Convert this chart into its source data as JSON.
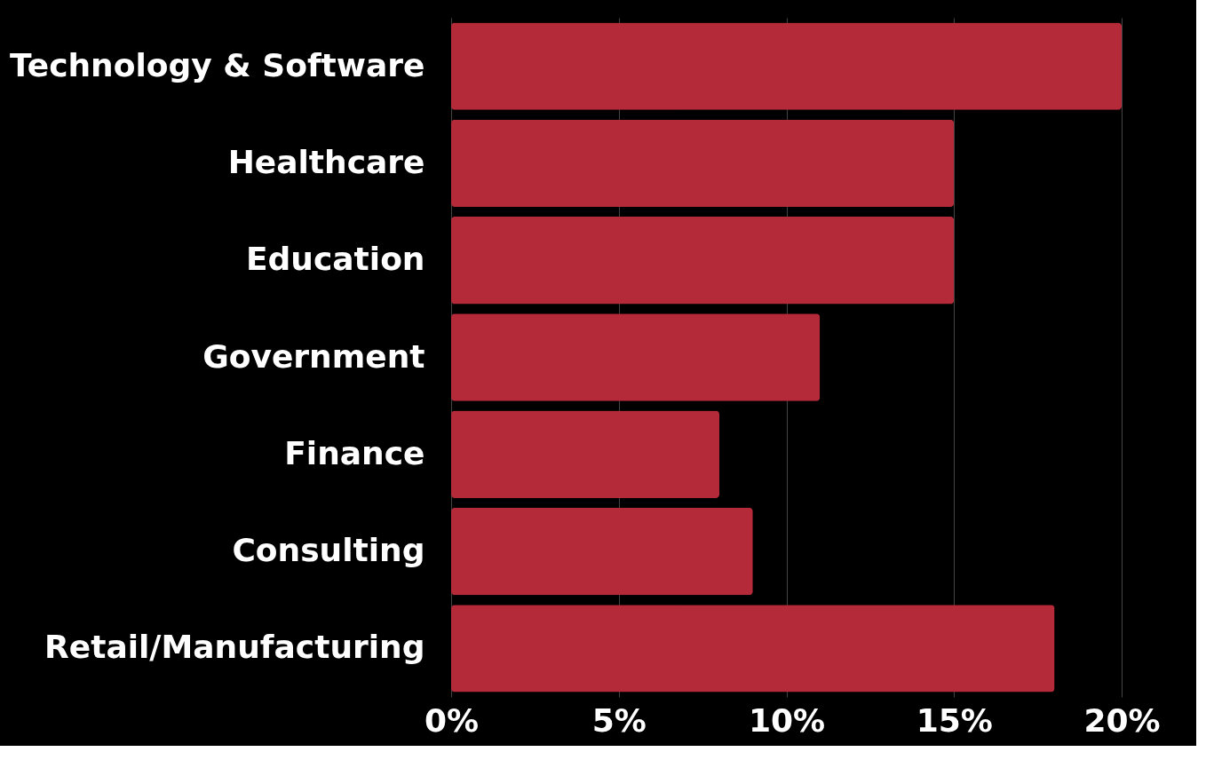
{
  "chart_data": {
    "type": "bar",
    "orientation": "horizontal",
    "categories": [
      "Technology & Software",
      "Healthcare",
      "Education",
      "Government",
      "Finance",
      "Consulting",
      "Retail/Manufacturing"
    ],
    "values": [
      20,
      15,
      15,
      11,
      8,
      9,
      18
    ],
    "color": "#b52a38",
    "xlim": [
      0,
      20
    ],
    "xticks": [
      {
        "value": 0,
        "label": "0%"
      },
      {
        "value": 5,
        "label": "5%"
      },
      {
        "value": 10,
        "label": "10%"
      },
      {
        "value": 15,
        "label": "15%"
      },
      {
        "value": 20,
        "label": "20%"
      }
    ],
    "grid": "x"
  }
}
